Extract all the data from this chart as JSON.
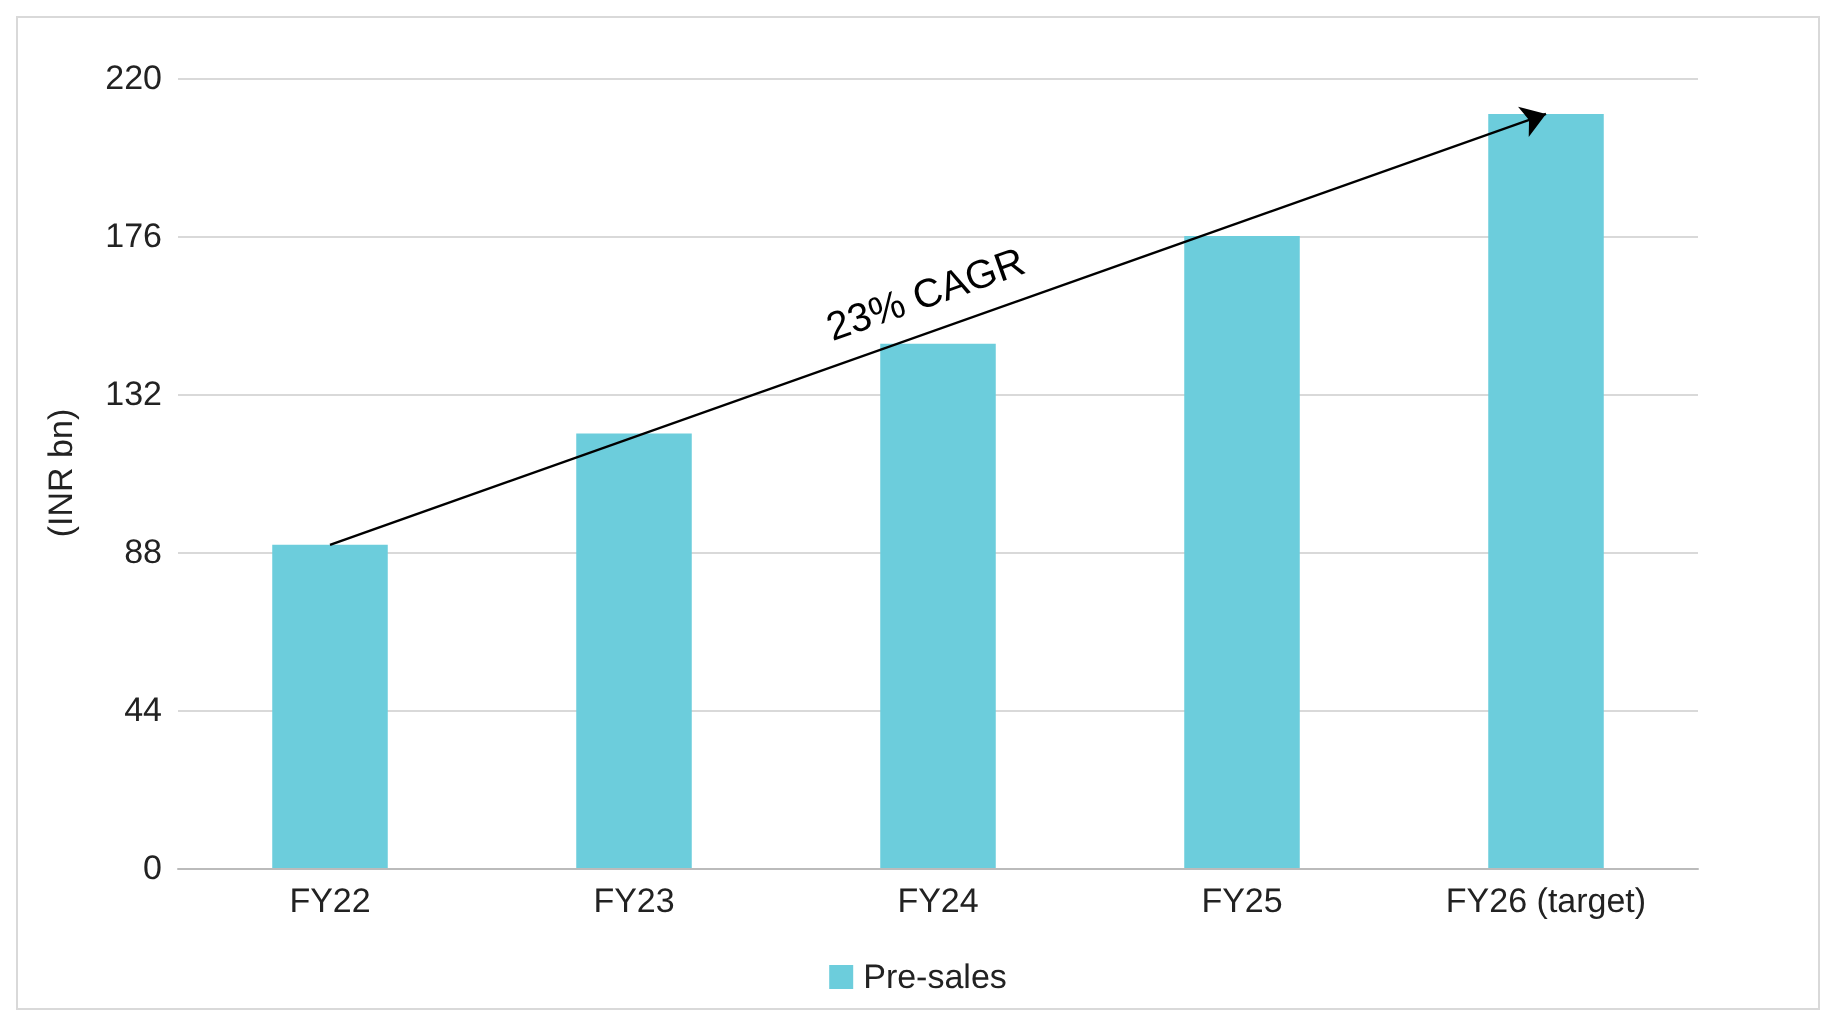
{
  "chart_data": {
    "type": "bar",
    "ylabel": "(INR bn)",
    "categories": [
      "FY22",
      "FY23",
      "FY24",
      "FY25",
      "FY26 (target)"
    ],
    "series": [
      {
        "name": "Pre-sales",
        "color": "#6ccddc",
        "values": [
          90,
          121,
          146,
          176,
          210
        ]
      }
    ],
    "ylim": [
      0,
      220
    ],
    "yticks": [
      0,
      44,
      88,
      132,
      176,
      220
    ],
    "grid": "y",
    "legend": "bottom",
    "annotations": [
      "23% CAGR"
    ]
  }
}
